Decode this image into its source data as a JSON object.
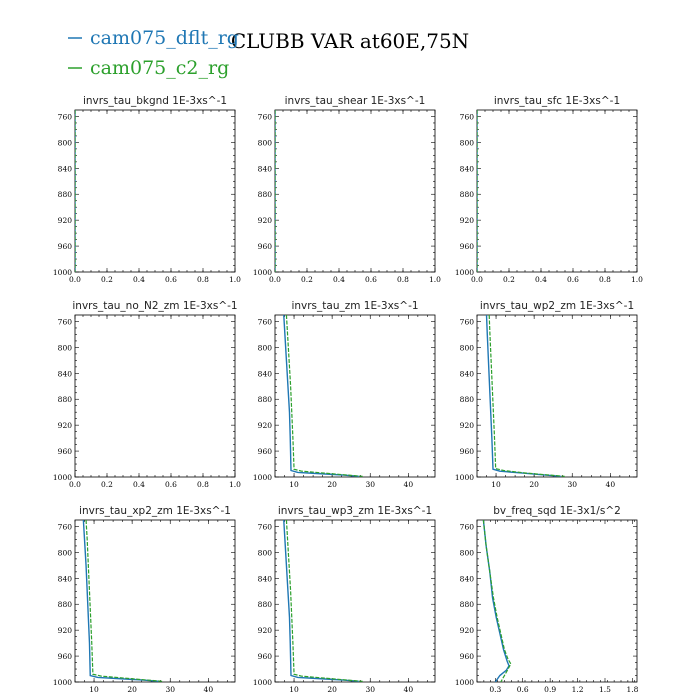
{
  "title": "CLUBB VAR at60E,75N",
  "colors": {
    "dflt": "#1f77b4",
    "c2": "#2ca02c"
  },
  "legend": [
    {
      "label": "cam075_dflt_rg",
      "color": "#1f77b4"
    },
    {
      "label": "cam075_c2_rg",
      "color": "#2ca02c"
    }
  ],
  "chart_data": [
    {
      "type": "line",
      "title": "invrs_tau_bkgnd   1E-3xs^-1",
      "xlim": [
        0,
        1
      ],
      "ylim": [
        1000,
        750
      ],
      "y_inverted": true,
      "xticks": [
        0.0,
        0.2,
        0.4,
        0.6,
        0.8,
        1.0
      ],
      "xtick_labels": [
        "0.0",
        "0.2",
        "0.4",
        "0.6",
        "0.8",
        "1.0"
      ],
      "yticks": [
        760,
        800,
        840,
        880,
        920,
        960,
        1000
      ],
      "series": [
        {
          "name": "cam075_dflt_rg",
          "x": [
            0,
            0,
            0,
            0,
            0,
            0,
            0
          ],
          "y": [
            750,
            800,
            850,
            900,
            950,
            980,
            1000
          ]
        },
        {
          "name": "cam075_c2_rg",
          "x": [
            0,
            0,
            0,
            0,
            0,
            0,
            0
          ],
          "y": [
            750,
            800,
            850,
            900,
            950,
            980,
            1000
          ]
        }
      ]
    },
    {
      "type": "line",
      "title": "invrs_tau_shear   1E-3xs^-1",
      "xlim": [
        0,
        1
      ],
      "ylim": [
        1000,
        750
      ],
      "y_inverted": true,
      "xticks": [
        0.0,
        0.2,
        0.4,
        0.6,
        0.8,
        1.0
      ],
      "xtick_labels": [
        "0.0",
        "0.2",
        "0.4",
        "0.6",
        "0.8",
        "1.0"
      ],
      "yticks": [
        760,
        800,
        840,
        880,
        920,
        960,
        1000
      ],
      "series": [
        {
          "name": "cam075_dflt_rg",
          "x": [
            0,
            0,
            0,
            0,
            0,
            0,
            0
          ],
          "y": [
            750,
            800,
            850,
            900,
            950,
            980,
            1000
          ]
        },
        {
          "name": "cam075_c2_rg",
          "x": [
            0,
            0,
            0,
            0,
            0,
            0,
            0
          ],
          "y": [
            750,
            800,
            850,
            900,
            950,
            980,
            1000
          ]
        }
      ]
    },
    {
      "type": "line",
      "title": "invrs_tau_sfc   1E-3xs^-1",
      "xlim": [
        0,
        1
      ],
      "ylim": [
        1000,
        750
      ],
      "y_inverted": true,
      "xticks": [
        0.0,
        0.2,
        0.4,
        0.6,
        0.8,
        1.0
      ],
      "xtick_labels": [
        "0.0",
        "0.2",
        "0.4",
        "0.6",
        "0.8",
        "1.0"
      ],
      "yticks": [
        760,
        800,
        840,
        880,
        920,
        960,
        1000
      ],
      "series": [
        {
          "name": "cam075_dflt_rg",
          "x": [
            0,
            0,
            0,
            0,
            0,
            0,
            0
          ],
          "y": [
            750,
            800,
            850,
            900,
            950,
            980,
            1000
          ]
        },
        {
          "name": "cam075_c2_rg",
          "x": [
            0,
            0,
            0,
            0,
            0,
            0,
            0
          ],
          "y": [
            750,
            800,
            850,
            900,
            950,
            980,
            1000
          ]
        }
      ]
    },
    {
      "type": "line",
      "title": "invrs_tau_no_N2_zm   1E-3xs^-1",
      "xlim": [
        0,
        1
      ],
      "ylim": [
        1000,
        750
      ],
      "y_inverted": true,
      "xticks": [
        0.0,
        0.2,
        0.4,
        0.6,
        0.8,
        1.0
      ],
      "xtick_labels": [
        "0.0",
        "0.2",
        "0.4",
        "0.6",
        "0.8",
        "1.0"
      ],
      "yticks": [
        760,
        800,
        840,
        880,
        920,
        960,
        1000
      ],
      "series": []
    },
    {
      "type": "line",
      "title": "invrs_tau_zm   1E-3xs^-1",
      "xlim": [
        5,
        47
      ],
      "ylim": [
        1000,
        750
      ],
      "y_inverted": true,
      "xticks": [
        10,
        20,
        30,
        40
      ],
      "xtick_labels": [
        "10",
        "20",
        "30",
        "40"
      ],
      "yticks": [
        760,
        800,
        840,
        880,
        920,
        960,
        1000
      ],
      "series": [
        {
          "name": "cam075_dflt_rg",
          "x": [
            7.3,
            7.6,
            8.0,
            8.4,
            8.8,
            9.0,
            9.2,
            11,
            17,
            23,
            27
          ],
          "y": [
            750,
            780,
            820,
            860,
            900,
            940,
            990,
            993,
            995,
            997,
            999
          ]
        },
        {
          "name": "cam075_c2_rg",
          "x": [
            8.0,
            8.3,
            8.7,
            9.1,
            9.4,
            9.7,
            10.0,
            12,
            18,
            24,
            28
          ],
          "y": [
            750,
            780,
            820,
            860,
            900,
            940,
            988,
            991,
            994,
            997,
            999
          ]
        }
      ]
    },
    {
      "type": "line",
      "title": "invrs_tau_wp2_zm   1E-3xs^-1",
      "xlim": [
        5,
        47
      ],
      "ylim": [
        1000,
        750
      ],
      "y_inverted": true,
      "xticks": [
        10,
        20,
        30,
        40
      ],
      "xtick_labels": [
        "10",
        "20",
        "30",
        "40"
      ],
      "yticks": [
        760,
        800,
        840,
        880,
        920,
        960,
        1000
      ],
      "series": [
        {
          "name": "cam075_dflt_rg",
          "x": [
            7.5,
            7.7,
            8.0,
            8.3,
            8.6,
            8.9,
            9.2,
            11,
            17,
            23,
            27
          ],
          "y": [
            750,
            780,
            820,
            860,
            900,
            940,
            988,
            991,
            994,
            997,
            999
          ]
        },
        {
          "name": "cam075_c2_rg",
          "x": [
            8.2,
            8.4,
            8.7,
            9.0,
            9.3,
            9.6,
            9.9,
            12,
            18,
            24,
            28
          ],
          "y": [
            750,
            780,
            820,
            860,
            900,
            940,
            987,
            990,
            994,
            997,
            999
          ]
        }
      ]
    },
    {
      "type": "line",
      "title": "invrs_tau_xp2_zm   1E-3xs^-1",
      "xlim": [
        5,
        47
      ],
      "ylim": [
        1000,
        750
      ],
      "y_inverted": true,
      "xticks": [
        10,
        20,
        30,
        40
      ],
      "xtick_labels": [
        "10",
        "20",
        "30",
        "40"
      ],
      "yticks": [
        760,
        800,
        840,
        880,
        920,
        960,
        1000
      ],
      "series": [
        {
          "name": "cam075_dflt_rg",
          "x": [
            7.2,
            7.5,
            7.9,
            8.2,
            8.5,
            8.8,
            9.0,
            11,
            17,
            23,
            27
          ],
          "y": [
            750,
            780,
            820,
            860,
            900,
            940,
            990,
            993,
            995,
            997,
            999
          ]
        },
        {
          "name": "cam075_c2_rg",
          "x": [
            7.9,
            8.2,
            8.5,
            8.8,
            9.1,
            9.4,
            9.7,
            12,
            18,
            24,
            28
          ],
          "y": [
            750,
            780,
            820,
            860,
            900,
            940,
            988,
            991,
            994,
            997,
            999
          ]
        }
      ]
    },
    {
      "type": "line",
      "title": "invrs_tau_wp3_zm   1E-3xs^-1",
      "xlim": [
        5,
        47
      ],
      "ylim": [
        1000,
        750
      ],
      "y_inverted": true,
      "xticks": [
        10,
        20,
        30,
        40
      ],
      "xtick_labels": [
        "10",
        "20",
        "30",
        "40"
      ],
      "yticks": [
        760,
        800,
        840,
        880,
        920,
        960,
        1000
      ],
      "series": [
        {
          "name": "cam075_dflt_rg",
          "x": [
            7.3,
            7.6,
            8.0,
            8.4,
            8.8,
            9.0,
            9.2,
            11,
            17,
            23,
            27
          ],
          "y": [
            750,
            780,
            820,
            860,
            900,
            940,
            990,
            993,
            995,
            997,
            999
          ]
        },
        {
          "name": "cam075_c2_rg",
          "x": [
            8.0,
            8.3,
            8.7,
            9.1,
            9.4,
            9.7,
            10.0,
            12,
            18,
            24,
            28
          ],
          "y": [
            750,
            780,
            820,
            860,
            900,
            940,
            988,
            991,
            994,
            997,
            999
          ]
        }
      ]
    },
    {
      "type": "line",
      "title": "bv_freq_sqd   1E-3x1/s^2",
      "xlim": [
        0.1,
        1.85
      ],
      "ylim": [
        1000,
        750
      ],
      "y_inverted": true,
      "xticks": [
        0.3,
        0.6,
        0.9,
        1.2,
        1.5,
        1.8
      ],
      "xtick_labels": [
        "0.3",
        "0.6",
        "0.9",
        "1.2",
        "1.5",
        "1.8"
      ],
      "yticks": [
        760,
        800,
        840,
        880,
        920,
        960,
        1000
      ],
      "series": [
        {
          "name": "cam075_dflt_rg",
          "x": [
            0.17,
            0.2,
            0.24,
            0.27,
            0.31,
            0.35,
            0.39,
            0.43,
            0.45,
            0.42,
            0.35,
            0.3
          ],
          "y": [
            750,
            790,
            830,
            870,
            900,
            925,
            950,
            968,
            975,
            982,
            990,
            1000
          ]
        },
        {
          "name": "cam075_c2_rg",
          "x": [
            0.17,
            0.2,
            0.24,
            0.28,
            0.32,
            0.36,
            0.4,
            0.44,
            0.47,
            0.44,
            0.4,
            0.36
          ],
          "y": [
            750,
            790,
            830,
            870,
            900,
            925,
            950,
            965,
            972,
            980,
            990,
            1000
          ]
        }
      ]
    }
  ]
}
